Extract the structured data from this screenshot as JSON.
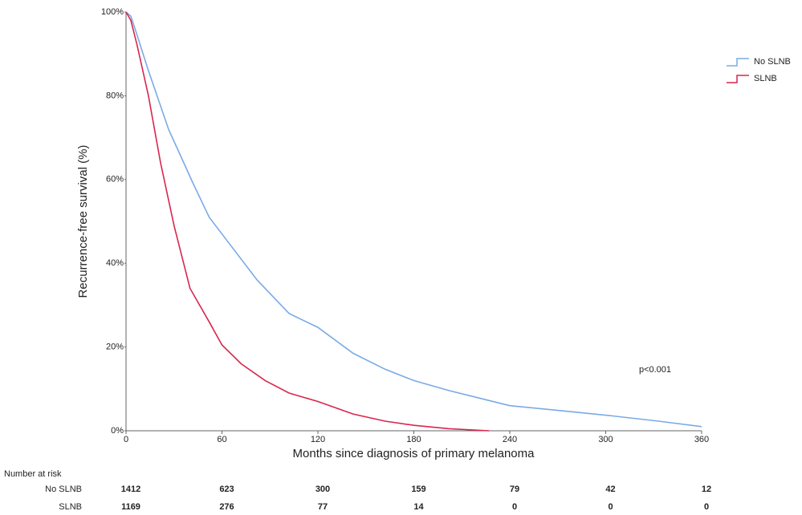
{
  "chart_data": {
    "type": "line",
    "xlabel": "Months since diagnosis of primary melanoma",
    "ylabel": "Recurrence-free survival (%)",
    "xlim": [
      0,
      360
    ],
    "ylim": [
      0,
      100
    ],
    "xticks": [
      0,
      60,
      120,
      180,
      240,
      300,
      360
    ],
    "yticks": [
      {
        "value": 0,
        "label": "0%"
      },
      {
        "value": 20,
        "label": "20%"
      },
      {
        "value": 40,
        "label": "40%"
      },
      {
        "value": 60,
        "label": "60%"
      },
      {
        "value": 80,
        "label": "80%"
      },
      {
        "value": 100,
        "label": "100%"
      }
    ],
    "grid": false,
    "legend": "top-right",
    "annotation": "p<0.001",
    "series": [
      {
        "name": "No SLNB",
        "color": "#7aaae6",
        "x": [
          0,
          3,
          6.5,
          14,
          26.6,
          42,
          52,
          60,
          82,
          102,
          120,
          142,
          162,
          180,
          202,
          222,
          240,
          272,
          303,
          333,
          360
        ],
        "values": [
          100,
          99,
          95,
          86,
          72,
          59,
          51,
          47,
          36,
          28,
          24.7,
          18.5,
          14.7,
          12,
          9.6,
          7.7,
          6,
          4.8,
          3.6,
          2.3,
          1
        ]
      },
      {
        "name": "SLNB",
        "color": "#d8264e",
        "x": [
          0,
          3,
          7,
          14,
          21.6,
          30,
          40,
          52,
          60,
          72,
          87,
          102,
          120,
          142,
          162,
          180,
          202,
          227
        ],
        "values": [
          100,
          98,
          92,
          80,
          64,
          49,
          34,
          26,
          20.5,
          16,
          12,
          9,
          7,
          4,
          2.3,
          1.3,
          0.5,
          0
        ]
      }
    ],
    "risk_table": {
      "title": "Number at risk",
      "rows": [
        {
          "name": "No SLNB",
          "values": [
            1412,
            623,
            300,
            159,
            79,
            42,
            12
          ]
        },
        {
          "name": "SLNB",
          "values": [
            1169,
            276,
            77,
            14,
            0,
            0,
            0
          ]
        }
      ]
    }
  }
}
